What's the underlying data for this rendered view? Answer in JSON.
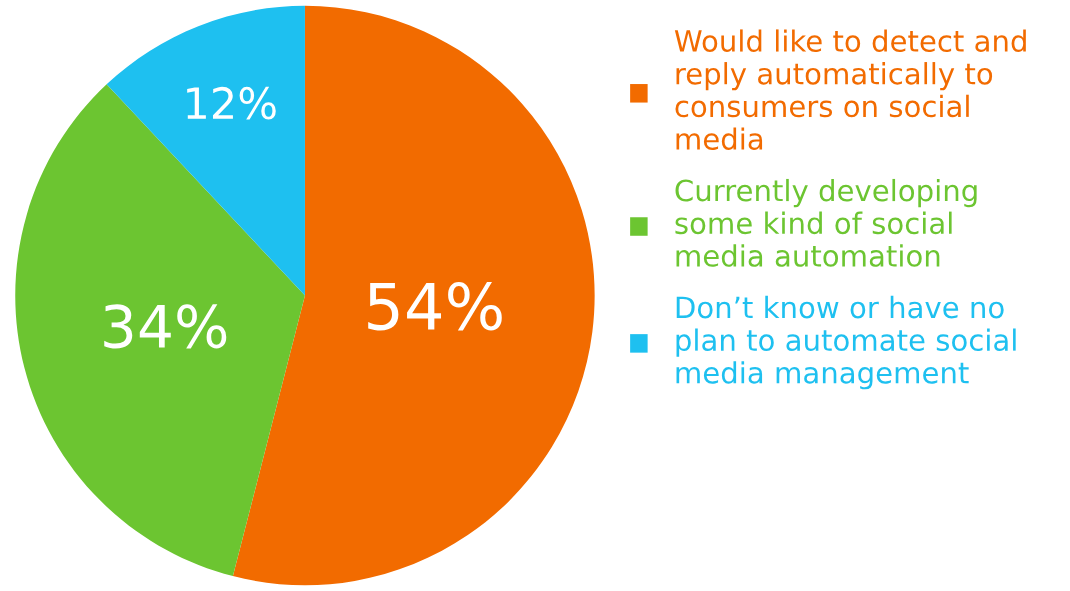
{
  "chart_data": {
    "type": "pie",
    "categories": [
      "Would like to detect and\nreply automatically to\nconsumers on social\nmedia",
      "Currently developing\nsome kind of social\nmedia automation",
      "Don’t know or have no\nplan to automate social\nmedia management"
    ],
    "values": [
      54,
      34,
      12
    ],
    "value_labels": [
      "54%",
      "34%",
      "12%"
    ],
    "colors": [
      "#f26b00",
      "#6cc531",
      "#1ec0f0"
    ],
    "legend": "right"
  }
}
